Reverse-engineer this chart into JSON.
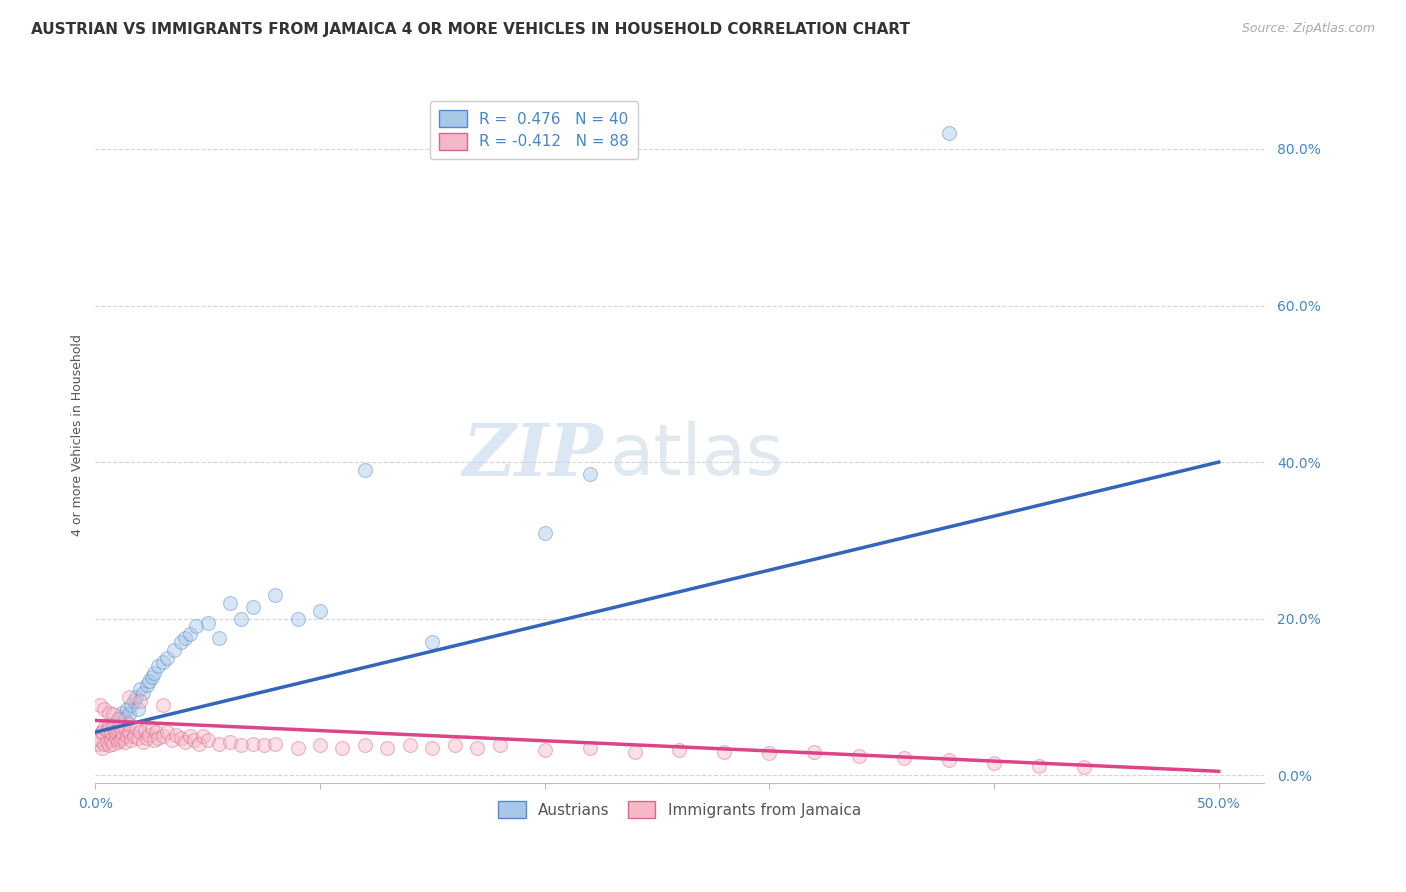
{
  "title": "AUSTRIAN VS IMMIGRANTS FROM JAMAICA 4 OR MORE VEHICLES IN HOUSEHOLD CORRELATION CHART",
  "source": "Source: ZipAtlas.com",
  "ylabel": "4 or more Vehicles in Household",
  "xlim": [
    0.0,
    0.52
  ],
  "ylim": [
    -0.01,
    0.88
  ],
  "watermark_zip": "ZIP",
  "watermark_atlas": "atlas",
  "blue_color": "#a8c8e8",
  "pink_color": "#f4b8c8",
  "blue_edge_color": "#5588cc",
  "pink_edge_color": "#dd6688",
  "blue_line_color": "#3366bb",
  "pink_line_color": "#dd4488",
  "blue_scatter_x": [
    0.003,
    0.006,
    0.008,
    0.01,
    0.011,
    0.012,
    0.013,
    0.014,
    0.015,
    0.016,
    0.017,
    0.018,
    0.019,
    0.02,
    0.021,
    0.023,
    0.024,
    0.025,
    0.026,
    0.028,
    0.03,
    0.032,
    0.035,
    0.038,
    0.04,
    0.042,
    0.045,
    0.05,
    0.055,
    0.06,
    0.065,
    0.07,
    0.08,
    0.09,
    0.1,
    0.12,
    0.15,
    0.2,
    0.22,
    0.38
  ],
  "blue_scatter_y": [
    0.055,
    0.06,
    0.065,
    0.07,
    0.075,
    0.08,
    0.072,
    0.085,
    0.078,
    0.09,
    0.095,
    0.1,
    0.085,
    0.11,
    0.105,
    0.115,
    0.12,
    0.125,
    0.13,
    0.14,
    0.145,
    0.15,
    0.16,
    0.17,
    0.175,
    0.18,
    0.19,
    0.195,
    0.175,
    0.22,
    0.2,
    0.215,
    0.23,
    0.2,
    0.21,
    0.39,
    0.17,
    0.31,
    0.385,
    0.82
  ],
  "pink_scatter_x": [
    0.001,
    0.002,
    0.003,
    0.003,
    0.004,
    0.004,
    0.005,
    0.005,
    0.006,
    0.006,
    0.007,
    0.007,
    0.008,
    0.008,
    0.009,
    0.009,
    0.01,
    0.01,
    0.011,
    0.011,
    0.012,
    0.012,
    0.013,
    0.013,
    0.014,
    0.015,
    0.015,
    0.016,
    0.017,
    0.018,
    0.019,
    0.02,
    0.021,
    0.022,
    0.023,
    0.024,
    0.025,
    0.026,
    0.027,
    0.028,
    0.03,
    0.032,
    0.034,
    0.036,
    0.038,
    0.04,
    0.042,
    0.044,
    0.046,
    0.048,
    0.05,
    0.055,
    0.06,
    0.065,
    0.07,
    0.075,
    0.08,
    0.09,
    0.1,
    0.11,
    0.12,
    0.13,
    0.14,
    0.15,
    0.16,
    0.17,
    0.18,
    0.2,
    0.22,
    0.24,
    0.26,
    0.28,
    0.3,
    0.32,
    0.34,
    0.36,
    0.38,
    0.4,
    0.42,
    0.44,
    0.002,
    0.004,
    0.006,
    0.008,
    0.01,
    0.015,
    0.02,
    0.03
  ],
  "pink_scatter_y": [
    0.04,
    0.045,
    0.035,
    0.055,
    0.04,
    0.06,
    0.042,
    0.058,
    0.038,
    0.065,
    0.045,
    0.055,
    0.04,
    0.06,
    0.048,
    0.055,
    0.042,
    0.058,
    0.045,
    0.062,
    0.048,
    0.055,
    0.043,
    0.06,
    0.05,
    0.055,
    0.065,
    0.045,
    0.05,
    0.06,
    0.048,
    0.055,
    0.042,
    0.058,
    0.048,
    0.052,
    0.06,
    0.045,
    0.055,
    0.048,
    0.05,
    0.055,
    0.045,
    0.052,
    0.048,
    0.042,
    0.05,
    0.045,
    0.04,
    0.05,
    0.045,
    0.04,
    0.042,
    0.038,
    0.04,
    0.038,
    0.04,
    0.035,
    0.038,
    0.035,
    0.038,
    0.035,
    0.038,
    0.035,
    0.038,
    0.035,
    0.038,
    0.032,
    0.035,
    0.03,
    0.032,
    0.03,
    0.028,
    0.03,
    0.025,
    0.022,
    0.02,
    0.015,
    0.012,
    0.01,
    0.09,
    0.085,
    0.08,
    0.078,
    0.072,
    0.1,
    0.095,
    0.09
  ],
  "blue_line_x": [
    0.0,
    0.5
  ],
  "blue_line_y": [
    0.055,
    0.4
  ],
  "pink_line_x": [
    0.0,
    0.5
  ],
  "pink_line_y": [
    0.07,
    0.005
  ],
  "legend_R_blue": "R =  0.476",
  "legend_N_blue": "N = 40",
  "legend_R_pink": "R = -0.412",
  "legend_N_pink": "N = 88",
  "legend_label_blue": "Austrians",
  "legend_label_pink": "Immigrants from Jamaica",
  "title_fontsize": 11,
  "source_fontsize": 9,
  "axis_label_fontsize": 9,
  "tick_fontsize": 10,
  "legend_fontsize": 11,
  "watermark_fontsize_zip": 52,
  "watermark_fontsize_atlas": 52,
  "background_color": "#ffffff",
  "grid_color": "#cccccc",
  "grid_alpha": 0.8,
  "scatter_size": 100,
  "scatter_alpha": 0.45,
  "line_width": 2.5
}
